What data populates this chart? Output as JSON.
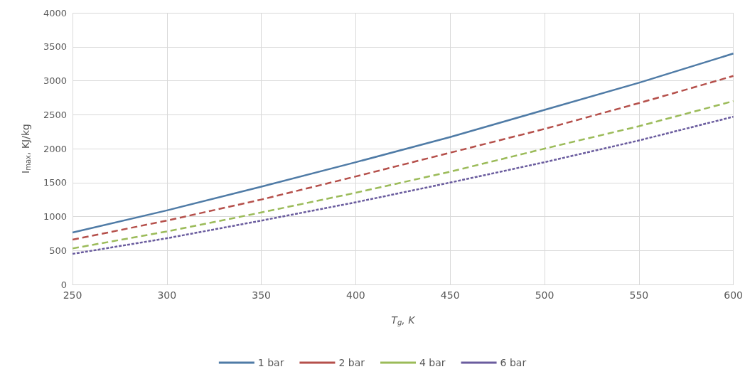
{
  "chart_data": {
    "type": "line",
    "xlabel": "T$_{g}$, K",
    "ylabel": "I$_{max}$, KJ/kg",
    "x": [
      250,
      300,
      350,
      400,
      450,
      500,
      550,
      600
    ],
    "series": [
      {
        "name": "1 bar",
        "color": "#4f7ba6",
        "line_style": "solid",
        "values": [
          765,
          1090,
          1440,
          1800,
          2170,
          2570,
          2970,
          3400
        ]
      },
      {
        "name": "2 bar",
        "color": "#b5504b",
        "line_style": "dashed",
        "values": [
          660,
          940,
          1250,
          1590,
          1940,
          2290,
          2670,
          3070
        ]
      },
      {
        "name": "4 bar",
        "color": "#9bbb59",
        "line_style": "dashed",
        "values": [
          530,
          780,
          1060,
          1350,
          1660,
          2000,
          2330,
          2700
        ]
      },
      {
        "name": "6 bar",
        "color": "#6a5c9e",
        "line_style": "dotted",
        "values": [
          450,
          680,
          940,
          1210,
          1500,
          1800,
          2120,
          2470
        ]
      }
    ],
    "xlim": [
      250,
      600
    ],
    "xticks": [
      250,
      300,
      350,
      400,
      450,
      500,
      550,
      600
    ],
    "ylim": [
      0,
      4000
    ],
    "yticks": [
      0,
      500,
      1000,
      1500,
      2000,
      2500,
      3000,
      3500,
      4000
    ],
    "grid": true,
    "legend": "bottom",
    "marker": "none"
  }
}
